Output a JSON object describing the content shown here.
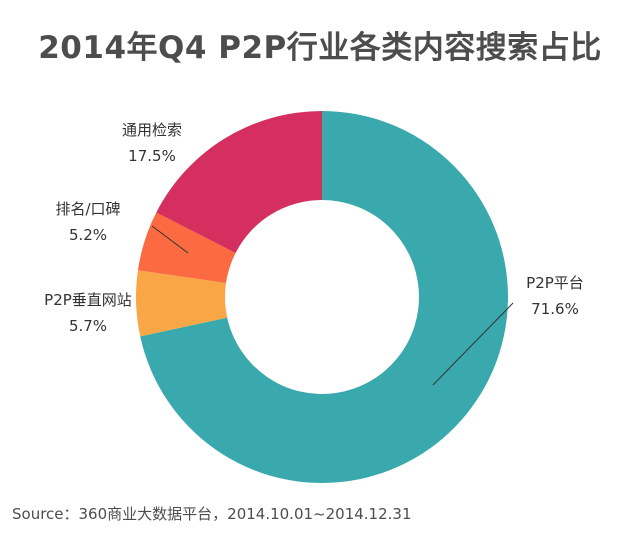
{
  "title": "2014年Q4 P2P行业各类内容搜索占比",
  "source": "Source：360商业大数据平台，2014.10.01~2014.12.31",
  "chart_data": {
    "type": "pie",
    "title": "2014年Q4 P2P行业各类内容搜索占比",
    "categories": [
      "P2P平台",
      "P2P垂直网站",
      "排名/口碑",
      "通用检索"
    ],
    "values": [
      71.6,
      5.7,
      5.2,
      17.5
    ],
    "value_labels": [
      "71.6%",
      "5.7%",
      "5.2%",
      "17.5%"
    ],
    "colors": [
      "#3aa9ae",
      "#f9a646",
      "#fb6a40",
      "#d42f5f"
    ],
    "donut": true,
    "start": "top",
    "direction": "clockwise"
  }
}
